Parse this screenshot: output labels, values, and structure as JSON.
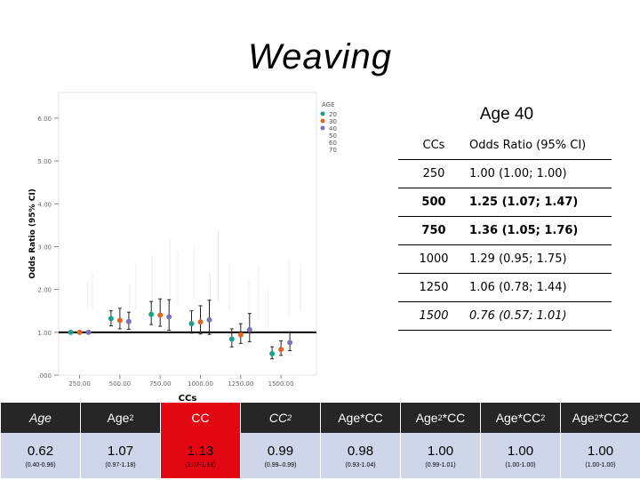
{
  "title": "Weaving",
  "chart_data": {
    "type": "scatter",
    "xlabel": "CCs",
    "ylabel": "Odds Ratio (95% CI)",
    "xticks": [
      "250.00",
      "500.00",
      "750.00",
      "1000.00",
      "1250.00",
      "1500.00"
    ],
    "xtick_values": [
      250,
      500,
      750,
      1000,
      1250,
      1500
    ],
    "yticks": [
      "6.00",
      "5.00",
      "4.00",
      "3.00",
      "2.00",
      "1.00",
      ".000"
    ],
    "ytick_values": [
      6,
      5,
      4,
      3,
      2,
      1,
      0
    ],
    "xlim": [
      120,
      1720
    ],
    "ylim": [
      0,
      6.6
    ],
    "reference_line": 1.0,
    "legend": {
      "title": "AGE",
      "position": "top-right",
      "entries": [
        {
          "label": "20",
          "color": "#1aa38a",
          "shown": true
        },
        {
          "label": "30",
          "color": "#e0661f",
          "shown": true
        },
        {
          "label": "40",
          "color": "#7c70b8",
          "shown": true
        },
        {
          "label": "50",
          "color": "#bbbbbb",
          "shown": false
        },
        {
          "label": "60",
          "color": "#bbbbbb",
          "shown": false
        },
        {
          "label": "70",
          "color": "#bbbbbb",
          "shown": false
        }
      ]
    },
    "series": [
      {
        "name": "20",
        "color": "#1aa38a",
        "x": [
          250,
          500,
          750,
          1000,
          1250,
          1500
        ],
        "y": [
          1.0,
          1.32,
          1.42,
          1.2,
          0.84,
          0.5
        ],
        "lo": [
          1.0,
          1.15,
          1.18,
          0.98,
          0.66,
          0.38
        ],
        "hi": [
          1.0,
          1.5,
          1.72,
          1.5,
          1.08,
          0.66
        ]
      },
      {
        "name": "30",
        "color": "#e0661f",
        "x": [
          250,
          500,
          750,
          1000,
          1250,
          1500
        ],
        "y": [
          1.0,
          1.28,
          1.4,
          1.24,
          0.94,
          0.6
        ],
        "lo": [
          1.0,
          1.08,
          1.14,
          0.96,
          0.74,
          0.46
        ],
        "hi": [
          1.0,
          1.56,
          1.78,
          1.62,
          1.2,
          0.8
        ]
      },
      {
        "name": "40",
        "color": "#7c70b8",
        "x": [
          250,
          500,
          750,
          1000,
          1250,
          1500
        ],
        "y": [
          1.0,
          1.25,
          1.36,
          1.29,
          1.06,
          0.76
        ],
        "lo": [
          1.0,
          1.07,
          1.05,
          0.95,
          0.78,
          0.57
        ],
        "hi": [
          1.0,
          1.47,
          1.76,
          1.75,
          1.44,
          1.01
        ]
      }
    ]
  },
  "or_table": {
    "title": "Age 40",
    "col_headers": [
      "CCs",
      "Odds Ratio (95% CI)"
    ],
    "rows": [
      {
        "cc": "250",
        "or": "1.00 (1.00; 1.00)",
        "style": ""
      },
      {
        "cc": "500",
        "or": "1.25 (1.07; 1.47)",
        "style": "bold"
      },
      {
        "cc": "750",
        "or": "1.36 (1.05; 1.76)",
        "style": "bold"
      },
      {
        "cc": "1000",
        "or": "1.29 (0.95; 1.75)",
        "style": ""
      },
      {
        "cc": "1250",
        "or": "1.06 (0.78; 1.44)",
        "style": ""
      },
      {
        "cc": "1500",
        "or": "0.76 (0.57; 1.01)",
        "style": "ital"
      }
    ]
  },
  "coef_table": {
    "columns": [
      {
        "base": "Age",
        "sup": "",
        "tail": "",
        "value": "0.62",
        "ci": "(0.40-0.96)",
        "highlight": false,
        "italic": true
      },
      {
        "base": "Age",
        "sup": "2",
        "tail": "",
        "value": "1.07",
        "ci": "(0.97-1.18)",
        "highlight": false,
        "italic": false
      },
      {
        "base": "CC",
        "sup": "",
        "tail": "",
        "value": "1.13",
        "ci": "(1.07-1.19)",
        "highlight": true,
        "italic": false
      },
      {
        "base": "CC",
        "sup": "2",
        "tail": "",
        "value": "0.99",
        "ci": "(0.99–0.99)",
        "highlight": false,
        "italic": true
      },
      {
        "base": "Age*CC",
        "sup": "",
        "tail": "",
        "value": "0.98",
        "ci": "(0.93-1.04)",
        "highlight": false,
        "italic": false
      },
      {
        "base": "Age",
        "sup": "2",
        "tail": "*CC",
        "value": "1.00",
        "ci": "(0.99-1.01)",
        "highlight": false,
        "italic": false
      },
      {
        "base": "Age*CC",
        "sup": "2",
        "tail": "",
        "value": "1.00",
        "ci": "(1.00-1.00)",
        "highlight": false,
        "italic": false
      },
      {
        "base": "Age",
        "sup": "2",
        "tail": "*CC2",
        "value": "1.00",
        "ci": "(1.00-1.00)",
        "highlight": false,
        "italic": false
      }
    ]
  }
}
